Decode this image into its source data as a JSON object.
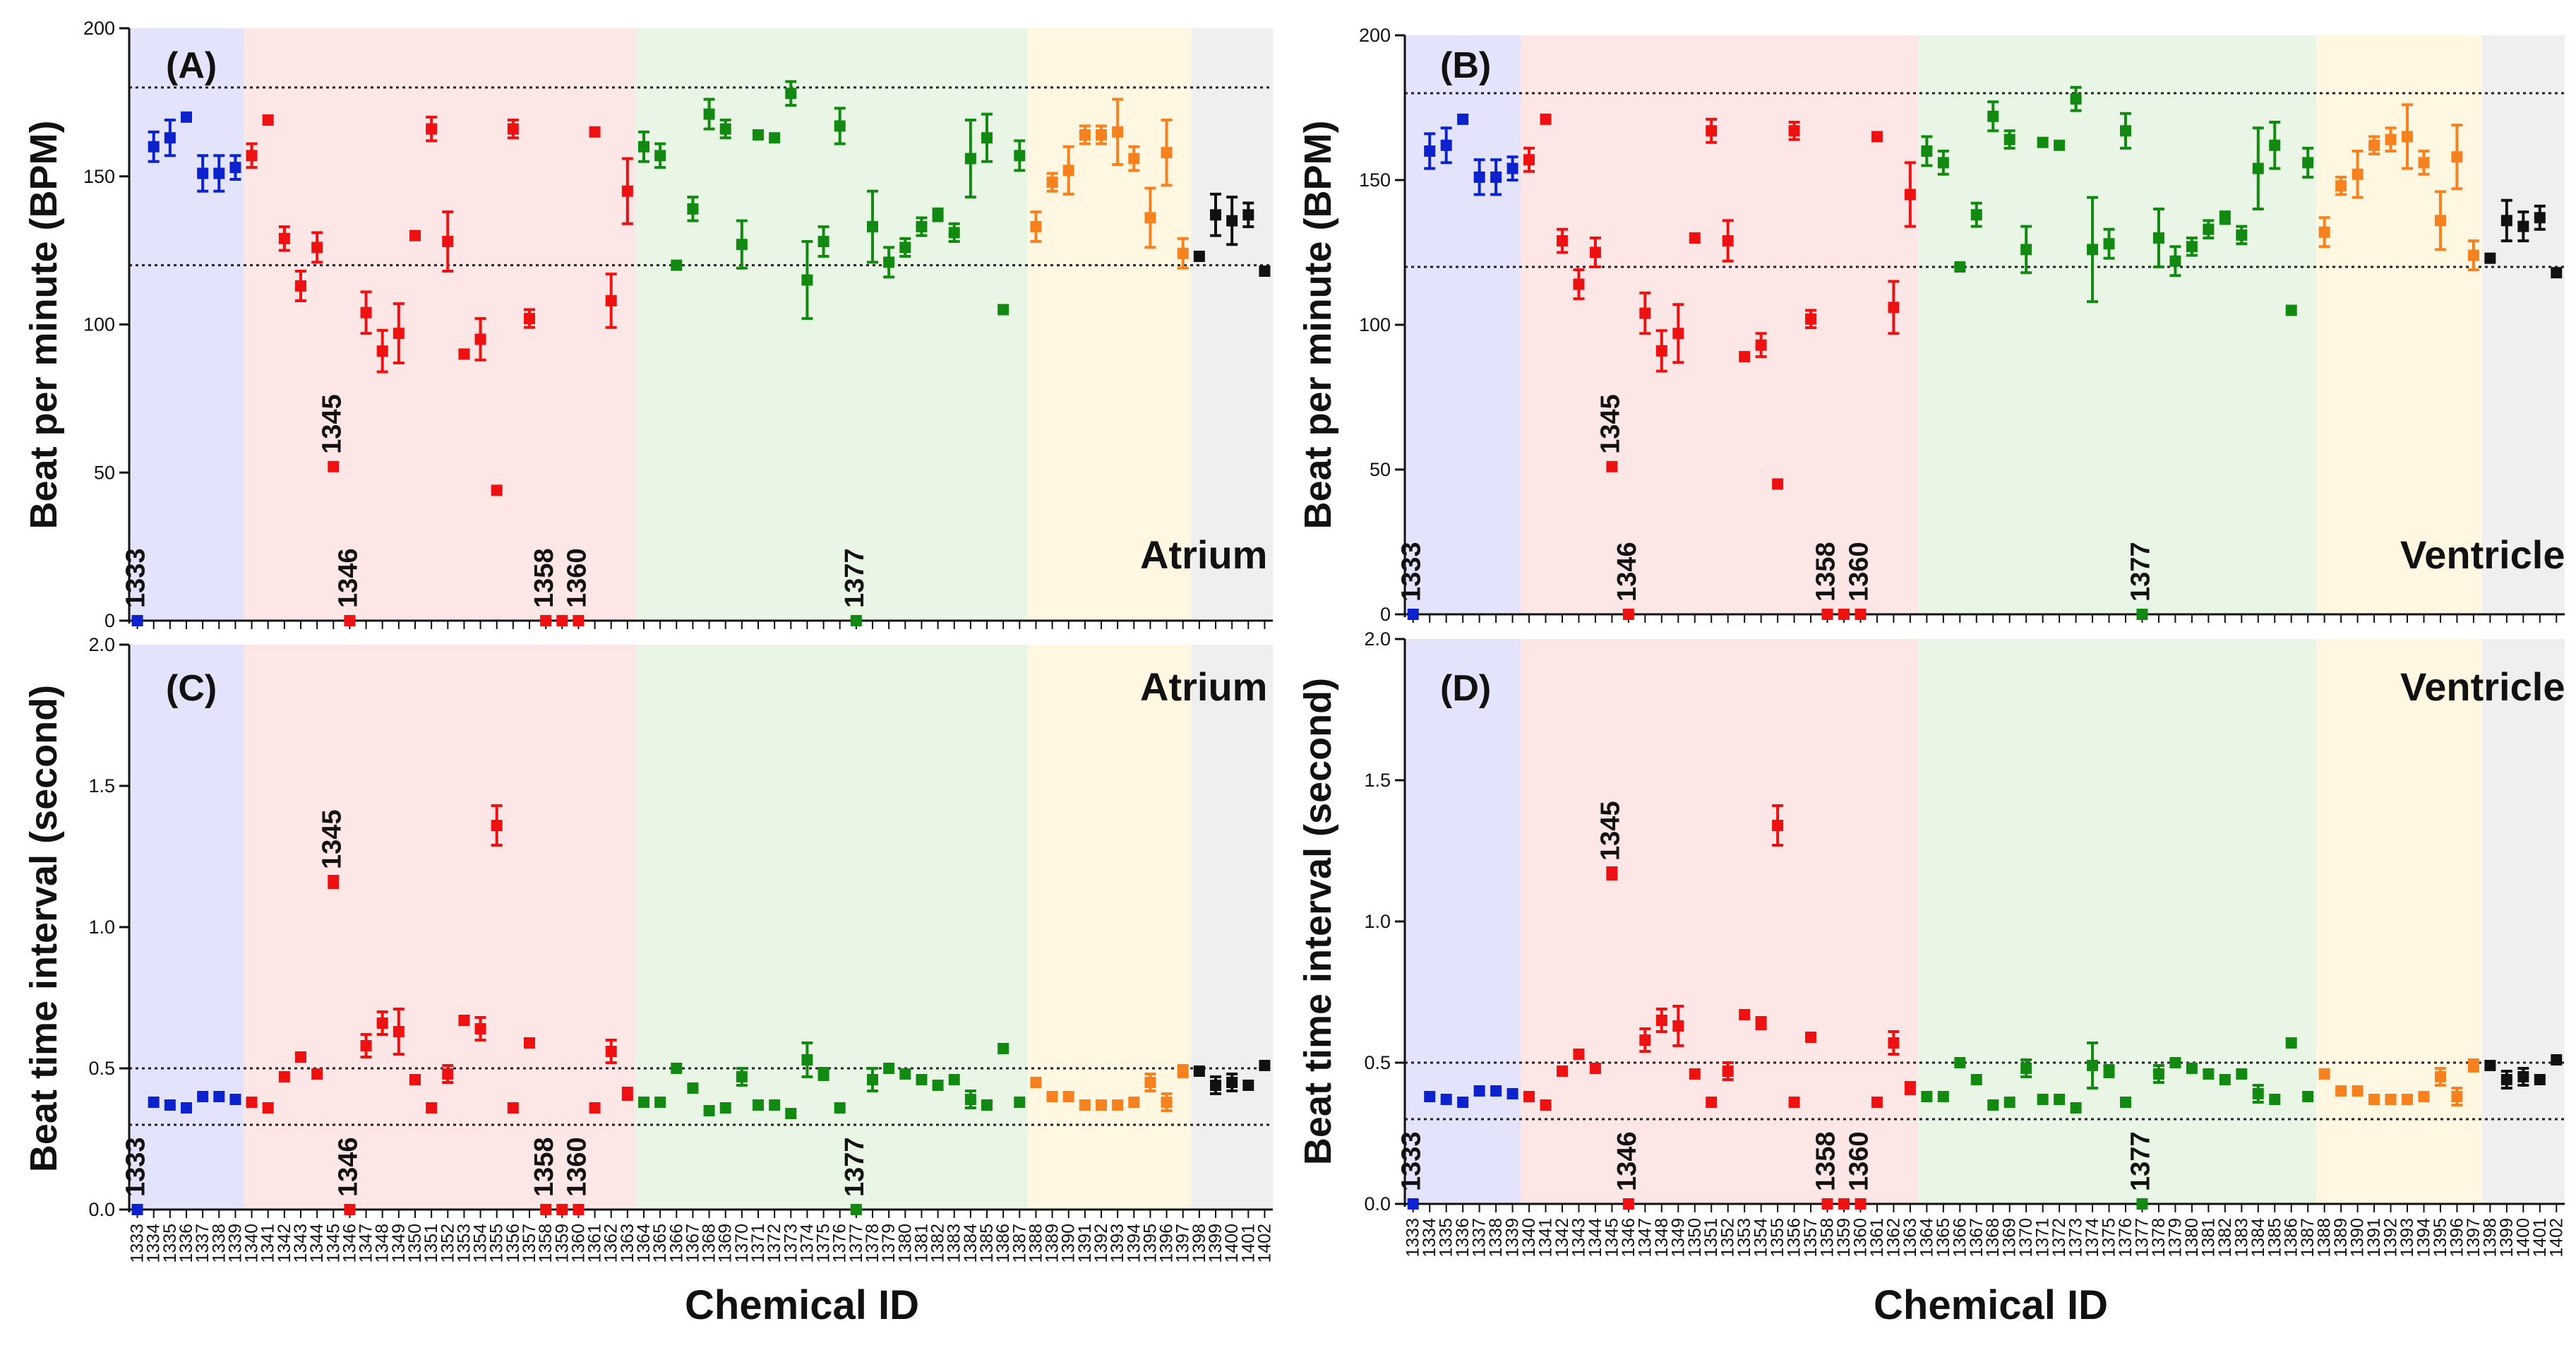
{
  "figure": {
    "x_axis_title": "Chemical ID"
  },
  "group_colors": {
    "blue": "#0B22CC",
    "red": "#EE1111",
    "green": "#128A12",
    "orange": "#F6821F",
    "black": "#111111"
  },
  "group_backgrounds": {
    "blue": "#E3E3FB",
    "red": "#FDE6E6",
    "green": "#EAF6E5",
    "orange": "#FFF7E2",
    "black": "#EFEFEF"
  },
  "chart_data": [
    {
      "type": "scatter",
      "panel": "(A)",
      "chamber": "Atrium",
      "ylabel": "Beat per minute (BPM)",
      "xlabel": "Chemical ID",
      "ylim": [
        0,
        200
      ],
      "yticks": [
        "0",
        "50",
        "100",
        "150",
        "200"
      ],
      "reference_lines": [
        120,
        180
      ],
      "categories": [
        "1333",
        "1334",
        "1335",
        "1336",
        "1337",
        "1338",
        "1339",
        "1340",
        "1341",
        "1342",
        "1343",
        "1344",
        "1345",
        "1346",
        "1347",
        "1348",
        "1349",
        "1350",
        "1351",
        "1352",
        "1353",
        "1354",
        "1355",
        "1356",
        "1357",
        "1358",
        "1359",
        "1360",
        "1361",
        "1362",
        "1363",
        "1364",
        "1365",
        "1366",
        "1367",
        "1368",
        "1369",
        "1370",
        "1371",
        "1372",
        "1373",
        "1374",
        "1375",
        "1376",
        "1377",
        "1378",
        "1379",
        "1380",
        "1381",
        "1382",
        "1383",
        "1384",
        "1385",
        "1386",
        "1387",
        "1388",
        "1389",
        "1390",
        "1391",
        "1392",
        "1393",
        "1394",
        "1395",
        "1396",
        "1397",
        "1398",
        "1399",
        "1400",
        "1401",
        "1402"
      ],
      "groups": [
        0,
        0,
        0,
        0,
        0,
        0,
        0,
        1,
        1,
        1,
        1,
        1,
        1,
        1,
        1,
        1,
        1,
        1,
        1,
        1,
        1,
        1,
        1,
        1,
        1,
        1,
        1,
        1,
        1,
        1,
        1,
        2,
        2,
        2,
        2,
        2,
        2,
        2,
        2,
        2,
        2,
        2,
        2,
        2,
        2,
        2,
        2,
        2,
        2,
        2,
        2,
        2,
        2,
        2,
        2,
        3,
        3,
        3,
        3,
        3,
        3,
        3,
        3,
        3,
        3,
        4,
        4,
        4,
        4,
        4
      ],
      "values": [
        0,
        160,
        163,
        170,
        151,
        151,
        153,
        157,
        169,
        129,
        113,
        126,
        52,
        0,
        104,
        91,
        97,
        130,
        166,
        128,
        90,
        95,
        44,
        166,
        102,
        0,
        0,
        0,
        165,
        108,
        145,
        160,
        157,
        120,
        139,
        171,
        166,
        127,
        164,
        163,
        178,
        115,
        128,
        167,
        0,
        133,
        121,
        126,
        133,
        137,
        131,
        156,
        163,
        105,
        157,
        133,
        148,
        152,
        164,
        164,
        165,
        156,
        136,
        158,
        124,
        123,
        137,
        135,
        137,
        118
      ],
      "errors": [
        0,
        5,
        6,
        0,
        6,
        6,
        4,
        4,
        0,
        4,
        5,
        5,
        0,
        0,
        7,
        7,
        10,
        0,
        4,
        10,
        0,
        7,
        0,
        3,
        3,
        0,
        0,
        0,
        0,
        9,
        11,
        5,
        4,
        0,
        4,
        5,
        3,
        8,
        0,
        0,
        4,
        13,
        5,
        6,
        0,
        12,
        5,
        3,
        3,
        2,
        3,
        13,
        8,
        0,
        5,
        5,
        3,
        8,
        3,
        3,
        11,
        4,
        10,
        11,
        5,
        0,
        7,
        8,
        4,
        0
      ],
      "labeled_points": [
        {
          "text": "1333",
          "category": "1333"
        },
        {
          "text": "1345",
          "category": "1345"
        },
        {
          "text": "1346",
          "category": "1346"
        },
        {
          "text": "1358",
          "category": "1358"
        },
        {
          "text": "1360",
          "category": "1360"
        },
        {
          "text": "1377",
          "category": "1377"
        }
      ]
    },
    {
      "type": "scatter",
      "panel": "(B)",
      "chamber": "Ventricle",
      "ylabel": "Beat per minute (BPM)",
      "xlabel": "Chemical ID",
      "ylim": [
        0,
        200
      ],
      "yticks": [
        "0",
        "50",
        "100",
        "150",
        "200"
      ],
      "reference_lines": [
        120,
        180
      ],
      "categories": [
        "1333",
        "1334",
        "1335",
        "1336",
        "1337",
        "1338",
        "1339",
        "1340",
        "1341",
        "1342",
        "1343",
        "1344",
        "1345",
        "1346",
        "1347",
        "1348",
        "1349",
        "1350",
        "1351",
        "1352",
        "1353",
        "1354",
        "1355",
        "1356",
        "1357",
        "1358",
        "1359",
        "1360",
        "1361",
        "1362",
        "1363",
        "1364",
        "1365",
        "1366",
        "1367",
        "1368",
        "1369",
        "1370",
        "1371",
        "1372",
        "1373",
        "1374",
        "1375",
        "1376",
        "1377",
        "1378",
        "1379",
        "1380",
        "1381",
        "1382",
        "1383",
        "1384",
        "1385",
        "1386",
        "1387",
        "1388",
        "1389",
        "1390",
        "1391",
        "1392",
        "1393",
        "1394",
        "1395",
        "1396",
        "1397",
        "1398",
        "1399",
        "1400",
        "1401",
        "1402"
      ],
      "groups": [
        0,
        0,
        0,
        0,
        0,
        0,
        0,
        1,
        1,
        1,
        1,
        1,
        1,
        1,
        1,
        1,
        1,
        1,
        1,
        1,
        1,
        1,
        1,
        1,
        1,
        1,
        1,
        1,
        1,
        1,
        1,
        2,
        2,
        2,
        2,
        2,
        2,
        2,
        2,
        2,
        2,
        2,
        2,
        2,
        2,
        2,
        2,
        2,
        2,
        2,
        2,
        2,
        2,
        2,
        2,
        3,
        3,
        3,
        3,
        3,
        3,
        3,
        3,
        3,
        3,
        4,
        4,
        4,
        4,
        4
      ],
      "values": [
        0,
        160,
        162,
        171,
        151,
        151,
        154,
        157,
        171,
        129,
        114,
        125,
        51,
        0,
        104,
        91,
        97,
        130,
        167,
        129,
        89,
        93,
        45,
        167,
        102,
        0,
        0,
        0,
        165,
        106,
        145,
        160,
        156,
        120,
        138,
        172,
        164,
        126,
        163,
        162,
        178,
        126,
        128,
        167,
        0,
        130,
        122,
        127,
        133,
        137,
        131,
        154,
        162,
        105,
        156,
        132,
        148,
        152,
        162,
        164,
        165,
        156,
        136,
        158,
        124,
        123,
        136,
        134,
        137,
        118
      ],
      "errors": [
        0,
        6,
        6,
        0,
        6,
        6,
        4,
        4,
        0,
        4,
        5,
        5,
        0,
        0,
        7,
        7,
        10,
        0,
        4,
        7,
        0,
        4,
        0,
        3,
        3,
        0,
        0,
        0,
        0,
        9,
        11,
        5,
        4,
        0,
        4,
        5,
        3,
        8,
        0,
        0,
        4,
        18,
        5,
        6,
        0,
        10,
        5,
        3,
        3,
        2,
        3,
        14,
        8,
        0,
        5,
        5,
        3,
        8,
        3,
        4,
        11,
        4,
        10,
        11,
        5,
        0,
        7,
        5,
        4,
        0
      ],
      "labeled_points": [
        {
          "text": "1333",
          "category": "1333"
        },
        {
          "text": "1345",
          "category": "1345"
        },
        {
          "text": "1346",
          "category": "1346"
        },
        {
          "text": "1358",
          "category": "1358"
        },
        {
          "text": "1360",
          "category": "1360"
        },
        {
          "text": "1377",
          "category": "1377"
        }
      ]
    },
    {
      "type": "scatter",
      "panel": "(C)",
      "chamber": "Atrium",
      "ylabel": "Beat time interval (second)",
      "xlabel": "Chemical ID",
      "ylim": [
        0,
        2
      ],
      "yticks": [
        "0.0",
        "0.5",
        "1.0",
        "1.5",
        "2.0"
      ],
      "reference_lines": [
        0,
        0.3,
        0.5
      ],
      "categories": [
        "1333",
        "1334",
        "1335",
        "1336",
        "1337",
        "1338",
        "1339",
        "1340",
        "1341",
        "1342",
        "1343",
        "1344",
        "1345",
        "1346",
        "1347",
        "1348",
        "1349",
        "1350",
        "1351",
        "1352",
        "1353",
        "1354",
        "1355",
        "1356",
        "1357",
        "1358",
        "1359",
        "1360",
        "1361",
        "1362",
        "1363",
        "1364",
        "1365",
        "1366",
        "1367",
        "1368",
        "1369",
        "1370",
        "1371",
        "1372",
        "1373",
        "1374",
        "1375",
        "1376",
        "1377",
        "1378",
        "1379",
        "1380",
        "1381",
        "1382",
        "1383",
        "1384",
        "1385",
        "1386",
        "1387",
        "1388",
        "1389",
        "1390",
        "1391",
        "1392",
        "1393",
        "1394",
        "1395",
        "1396",
        "1397",
        "1398",
        "1399",
        "1400",
        "1401",
        "1402"
      ],
      "groups": [
        0,
        0,
        0,
        0,
        0,
        0,
        0,
        1,
        1,
        1,
        1,
        1,
        1,
        1,
        1,
        1,
        1,
        1,
        1,
        1,
        1,
        1,
        1,
        1,
        1,
        1,
        1,
        1,
        1,
        1,
        1,
        2,
        2,
        2,
        2,
        2,
        2,
        2,
        2,
        2,
        2,
        2,
        2,
        2,
        2,
        2,
        2,
        2,
        2,
        2,
        2,
        2,
        2,
        2,
        2,
        3,
        3,
        3,
        3,
        3,
        3,
        3,
        3,
        3,
        3,
        4,
        4,
        4,
        4,
        4
      ],
      "values": [
        0,
        0.38,
        0.37,
        0.36,
        0.4,
        0.4,
        0.39,
        0.38,
        0.36,
        0.47,
        0.54,
        0.48,
        1.16,
        0,
        0.58,
        0.66,
        0.63,
        0.46,
        0.36,
        0.48,
        0.67,
        0.64,
        1.36,
        0.36,
        0.59,
        0,
        0,
        0,
        0.36,
        0.56,
        0.41,
        0.38,
        0.38,
        0.5,
        0.43,
        0.35,
        0.36,
        0.47,
        0.37,
        0.37,
        0.34,
        0.53,
        0.48,
        0.36,
        0,
        0.46,
        0.5,
        0.48,
        0.46,
        0.44,
        0.46,
        0.39,
        0.37,
        0.57,
        0.38,
        0.45,
        0.4,
        0.4,
        0.37,
        0.37,
        0.37,
        0.38,
        0.45,
        0.38,
        0.49,
        0.49,
        0.44,
        0.45,
        0.44,
        0.51
      ],
      "errors": [
        0,
        0,
        0,
        0,
        0,
        0,
        0,
        0,
        0,
        0,
        0,
        0,
        0.02,
        0,
        0.04,
        0.04,
        0.08,
        0,
        0,
        0.03,
        0,
        0.04,
        0.07,
        0,
        0,
        0,
        0,
        0,
        0,
        0.04,
        0.02,
        0,
        0,
        0,
        0,
        0,
        0,
        0.03,
        0,
        0,
        0,
        0.06,
        0.02,
        0,
        0,
        0.04,
        0,
        0,
        0,
        0,
        0,
        0.03,
        0,
        0,
        0,
        0,
        0,
        0,
        0,
        0,
        0,
        0,
        0.03,
        0.03,
        0.02,
        0,
        0.03,
        0.03,
        0,
        0
      ],
      "labeled_points": [
        {
          "text": "1333",
          "category": "1333"
        },
        {
          "text": "1345",
          "category": "1345"
        },
        {
          "text": "1346",
          "category": "1346"
        },
        {
          "text": "1358",
          "category": "1358"
        },
        {
          "text": "1360",
          "category": "1360"
        },
        {
          "text": "1377",
          "category": "1377"
        }
      ]
    },
    {
      "type": "scatter",
      "panel": "(D)",
      "chamber": "Ventricle",
      "ylabel": "Beat time interval (second)",
      "xlabel": "Chemical ID",
      "ylim": [
        0,
        2
      ],
      "yticks": [
        "0.0",
        "0.5",
        "1.0",
        "1.5",
        "2.0"
      ],
      "reference_lines": [
        0,
        0.3,
        0.5
      ],
      "categories": [
        "1333",
        "1334",
        "1335",
        "1336",
        "1337",
        "1338",
        "1339",
        "1340",
        "1341",
        "1342",
        "1343",
        "1344",
        "1345",
        "1346",
        "1347",
        "1348",
        "1349",
        "1350",
        "1351",
        "1352",
        "1353",
        "1354",
        "1355",
        "1356",
        "1357",
        "1358",
        "1359",
        "1360",
        "1361",
        "1362",
        "1363",
        "1364",
        "1365",
        "1366",
        "1367",
        "1368",
        "1369",
        "1370",
        "1371",
        "1372",
        "1373",
        "1374",
        "1375",
        "1376",
        "1377",
        "1378",
        "1379",
        "1380",
        "1381",
        "1382",
        "1383",
        "1384",
        "1385",
        "1386",
        "1387",
        "1388",
        "1389",
        "1390",
        "1391",
        "1392",
        "1393",
        "1394",
        "1395",
        "1396",
        "1397",
        "1398",
        "1399",
        "1400",
        "1401",
        "1402"
      ],
      "groups": [
        0,
        0,
        0,
        0,
        0,
        0,
        0,
        1,
        1,
        1,
        1,
        1,
        1,
        1,
        1,
        1,
        1,
        1,
        1,
        1,
        1,
        1,
        1,
        1,
        1,
        1,
        1,
        1,
        1,
        1,
        1,
        2,
        2,
        2,
        2,
        2,
        2,
        2,
        2,
        2,
        2,
        2,
        2,
        2,
        2,
        2,
        2,
        2,
        2,
        2,
        2,
        2,
        2,
        2,
        2,
        3,
        3,
        3,
        3,
        3,
        3,
        3,
        3,
        3,
        3,
        4,
        4,
        4,
        4,
        4
      ],
      "values": [
        0,
        0.38,
        0.37,
        0.36,
        0.4,
        0.4,
        0.39,
        0.38,
        0.35,
        0.47,
        0.53,
        0.48,
        1.17,
        0,
        0.58,
        0.65,
        0.63,
        0.46,
        0.36,
        0.47,
        0.67,
        0.64,
        1.34,
        0.36,
        0.59,
        0,
        0,
        0,
        0.36,
        0.57,
        0.41,
        0.38,
        0.38,
        0.5,
        0.44,
        0.35,
        0.36,
        0.48,
        0.37,
        0.37,
        0.34,
        0.49,
        0.47,
        0.36,
        0,
        0.46,
        0.5,
        0.48,
        0.46,
        0.44,
        0.46,
        0.39,
        0.37,
        0.57,
        0.38,
        0.46,
        0.4,
        0.4,
        0.37,
        0.37,
        0.37,
        0.38,
        0.45,
        0.38,
        0.49,
        0.49,
        0.44,
        0.45,
        0.44,
        0.51
      ],
      "errors": [
        0,
        0,
        0,
        0,
        0,
        0,
        0,
        0,
        0,
        0,
        0,
        0,
        0.02,
        0,
        0.04,
        0.04,
        0.07,
        0,
        0,
        0.03,
        0,
        0.02,
        0.07,
        0,
        0,
        0,
        0,
        0,
        0,
        0.04,
        0.02,
        0,
        0,
        0,
        0,
        0,
        0,
        0.03,
        0,
        0,
        0,
        0.08,
        0.02,
        0,
        0,
        0.03,
        0,
        0,
        0,
        0,
        0,
        0.03,
        0,
        0,
        0,
        0,
        0,
        0,
        0,
        0,
        0,
        0,
        0.03,
        0.03,
        0.02,
        0,
        0.03,
        0.03,
        0,
        0
      ],
      "labeled_points": [
        {
          "text": "1333",
          "category": "1333"
        },
        {
          "text": "1345",
          "category": "1345"
        },
        {
          "text": "1346",
          "category": "1346"
        },
        {
          "text": "1358",
          "category": "1358"
        },
        {
          "text": "1360",
          "category": "1360"
        },
        {
          "text": "1377",
          "category": "1377"
        }
      ]
    }
  ]
}
